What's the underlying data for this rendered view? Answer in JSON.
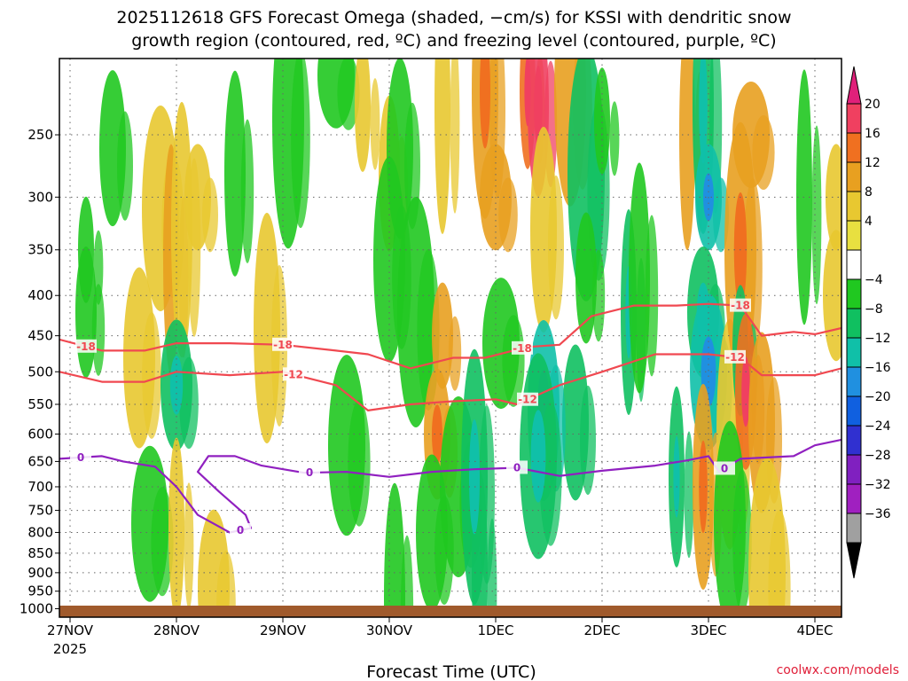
{
  "chart_data": {
    "type": "heatmap",
    "title_line1": "2025112618 GFS Forecast Omega (shaded, −cm/s) for KSSI with dendritic snow",
    "title_line2": "growth region (contoured, red, ºC) and freezing level (contoured, purple, ºC)",
    "xlabel": "Forecast Time (UTC)",
    "ylabel": "",
    "credit": "coolwx.com/models",
    "x_ticks": [
      {
        "t": 0.0,
        "label": "27NOV"
      },
      {
        "t": 1.0,
        "label": "28NOV"
      },
      {
        "t": 2.0,
        "label": "29NOV"
      },
      {
        "t": 3.0,
        "label": "30NOV"
      },
      {
        "t": 4.0,
        "label": "1DEC"
      },
      {
        "t": 5.0,
        "label": "2DEC"
      },
      {
        "t": 6.0,
        "label": "3DEC"
      },
      {
        "t": 7.0,
        "label": "4DEC"
      }
    ],
    "x_year_label": "2025",
    "xlim": [
      -0.1,
      7.25
    ],
    "y_ticks": [
      250,
      300,
      350,
      400,
      450,
      500,
      550,
      600,
      650,
      700,
      750,
      800,
      850,
      900,
      950,
      1000
    ],
    "ylim": [
      200,
      1025
    ],
    "y_scale": "log",
    "grid": true,
    "colorbar": {
      "labels": [
        "20",
        "16",
        "12",
        "8",
        "4",
        "−4",
        "−8",
        "−12",
        "−16",
        "−20",
        "−24",
        "−28",
        "−32",
        "−36"
      ],
      "colors": [
        "#f04060",
        "#f07020",
        "#e8a020",
        "#e8c830",
        "#e8e040",
        "#ffffff",
        "#20c820",
        "#10c060",
        "#10c0a8",
        "#2090e0",
        "#1060e0",
        "#3030d0",
        "#8020c0",
        "#a020c0",
        "#a0a0a0"
      ],
      "top_arrow_color": "#e0207a",
      "bottom_arrow_color": "#000000"
    },
    "omega_cells": [
      {
        "t": 0.15,
        "p": 350,
        "v": -6
      },
      {
        "t": 0.15,
        "p": 420,
        "v": -8
      },
      {
        "t": 0.4,
        "p": 260,
        "v": -6
      },
      {
        "t": 0.65,
        "p": 480,
        "v": 6
      },
      {
        "t": 0.85,
        "p": 310,
        "v": 6
      },
      {
        "t": 0.95,
        "p": 360,
        "v": 9
      },
      {
        "t": 1.05,
        "p": 330,
        "v": 5
      },
      {
        "t": 1.2,
        "p": 300,
        "v": 5
      },
      {
        "t": 1.0,
        "p": 520,
        "v": -12
      },
      {
        "t": 0.75,
        "p": 780,
        "v": -8
      },
      {
        "t": 1.0,
        "p": 790,
        "v": 5
      },
      {
        "t": 1.55,
        "p": 280,
        "v": -6
      },
      {
        "t": 1.85,
        "p": 440,
        "v": 5
      },
      {
        "t": 2.05,
        "p": 240,
        "v": -6
      },
      {
        "t": 2.5,
        "p": 210,
        "v": -7
      },
      {
        "t": 2.75,
        "p": 230,
        "v": 5
      },
      {
        "t": 3.0,
        "p": 280,
        "v": 5
      },
      {
        "t": 3.1,
        "p": 260,
        "v": -7
      },
      {
        "t": 3.0,
        "p": 360,
        "v": -8
      },
      {
        "t": 3.25,
        "p": 420,
        "v": -7
      },
      {
        "t": 3.5,
        "p": 230,
        "v": 6
      },
      {
        "t": 3.5,
        "p": 450,
        "v": 8
      },
      {
        "t": 3.45,
        "p": 600,
        "v": 10
      },
      {
        "t": 3.4,
        "p": 800,
        "v": -8
      },
      {
        "t": 3.65,
        "p": 700,
        "v": -7
      },
      {
        "t": 3.85,
        "p": 900,
        "v": -9
      },
      {
        "t": 3.05,
        "p": 970,
        "v": -8
      },
      {
        "t": 3.9,
        "p": 220,
        "v": 10
      },
      {
        "t": 4.0,
        "p": 300,
        "v": 8
      },
      {
        "t": 4.05,
        "p": 460,
        "v": -8
      },
      {
        "t": 4.3,
        "p": 220,
        "v": 13
      },
      {
        "t": 4.4,
        "p": 230,
        "v": 20
      },
      {
        "t": 4.45,
        "p": 330,
        "v": 7
      },
      {
        "t": 4.7,
        "p": 220,
        "v": 9
      },
      {
        "t": 4.85,
        "p": 280,
        "v": -9
      },
      {
        "t": 5.0,
        "p": 240,
        "v": -8
      },
      {
        "t": 4.85,
        "p": 380,
        "v": -8
      },
      {
        "t": 4.75,
        "p": 580,
        "v": -9
      },
      {
        "t": 4.45,
        "p": 560,
        "v": -14
      },
      {
        "t": 4.4,
        "p": 640,
        "v": -12
      },
      {
        "t": 5.8,
        "p": 250,
        "v": 8
      },
      {
        "t": 5.95,
        "p": 230,
        "v": -10
      },
      {
        "t": 6.0,
        "p": 300,
        "v": -14
      },
      {
        "t": 5.95,
        "p": 420,
        "v": -12
      },
      {
        "t": 6.0,
        "p": 500,
        "v": -14
      },
      {
        "t": 5.7,
        "p": 680,
        "v": -10
      },
      {
        "t": 5.95,
        "p": 700,
        "v": 10
      },
      {
        "t": 6.2,
        "p": 600,
        "v": 6
      },
      {
        "t": 6.3,
        "p": 350,
        "v": 10
      },
      {
        "t": 6.4,
        "p": 250,
        "v": 8
      },
      {
        "t": 6.3,
        "p": 470,
        "v": -9
      },
      {
        "t": 6.35,
        "p": 530,
        "v": 14
      },
      {
        "t": 6.5,
        "p": 580,
        "v": 9
      },
      {
        "t": 6.2,
        "p": 780,
        "v": -8
      },
      {
        "t": 6.55,
        "p": 900,
        "v": 6
      },
      {
        "t": 6.9,
        "p": 300,
        "v": -8
      },
      {
        "t": 7.2,
        "p": 300,
        "v": 6
      },
      {
        "t": 7.2,
        "p": 400,
        "v": 5
      },
      {
        "t": 1.35,
        "p": 940,
        "v": 5
      },
      {
        "t": 2.6,
        "p": 620,
        "v": -7
      },
      {
        "t": 5.25,
        "p": 420,
        "v": -10
      },
      {
        "t": 5.35,
        "p": 380,
        "v": -8
      },
      {
        "t": 3.8,
        "p": 680,
        "v": -10
      }
    ],
    "contours": [
      {
        "label": "-18",
        "color": "#f04850",
        "label_t": [
          0.15,
          2.0,
          4.25,
          6.3
        ],
        "points": [
          [
            -0.1,
            455
          ],
          [
            0.3,
            470
          ],
          [
            0.7,
            470
          ],
          [
            1.0,
            460
          ],
          [
            1.5,
            460
          ],
          [
            2.0,
            462
          ],
          [
            2.5,
            470
          ],
          [
            2.8,
            475
          ],
          [
            3.2,
            495
          ],
          [
            3.6,
            480
          ],
          [
            3.9,
            480
          ],
          [
            4.3,
            465
          ],
          [
            4.6,
            462
          ],
          [
            4.9,
            425
          ],
          [
            5.3,
            412
          ],
          [
            5.7,
            412
          ],
          [
            6.0,
            410
          ],
          [
            6.3,
            412
          ],
          [
            6.5,
            450
          ],
          [
            6.8,
            445
          ],
          [
            7.0,
            448
          ],
          [
            7.25,
            440
          ]
        ]
      },
      {
        "label": "-12",
        "color": "#f04850",
        "label_t": [
          2.1,
          4.3,
          6.25
        ],
        "points": [
          [
            -0.1,
            500
          ],
          [
            0.3,
            515
          ],
          [
            0.7,
            515
          ],
          [
            1.0,
            500
          ],
          [
            1.5,
            505
          ],
          [
            2.0,
            500
          ],
          [
            2.5,
            520
          ],
          [
            2.8,
            560
          ],
          [
            3.2,
            550
          ],
          [
            3.6,
            545
          ],
          [
            4.0,
            542
          ],
          [
            4.2,
            550
          ],
          [
            4.6,
            520
          ],
          [
            5.0,
            500
          ],
          [
            5.5,
            475
          ],
          [
            6.0,
            475
          ],
          [
            6.3,
            480
          ],
          [
            6.5,
            505
          ],
          [
            7.0,
            505
          ],
          [
            7.25,
            495
          ]
        ]
      },
      {
        "label": "0",
        "color": "#9020c0",
        "label_t": [
          0.1,
          1.6,
          2.25,
          4.2,
          6.15
        ],
        "points": [
          [
            -0.1,
            645
          ],
          [
            0.3,
            640
          ],
          [
            0.5,
            650
          ],
          [
            0.8,
            660
          ],
          [
            1.0,
            700
          ],
          [
            1.2,
            760
          ],
          [
            1.5,
            800
          ],
          [
            1.7,
            790
          ],
          [
            1.65,
            760
          ],
          [
            1.4,
            710
          ],
          [
            1.2,
            670
          ],
          [
            1.3,
            640
          ],
          [
            1.55,
            640
          ],
          [
            1.8,
            658
          ],
          [
            2.2,
            672
          ],
          [
            2.6,
            670
          ],
          [
            3.0,
            680
          ],
          [
            3.4,
            670
          ],
          [
            3.8,
            665
          ],
          [
            4.2,
            662
          ],
          [
            4.6,
            678
          ],
          [
            5.0,
            668
          ],
          [
            5.5,
            658
          ],
          [
            5.8,
            648
          ],
          [
            6.0,
            640
          ],
          [
            6.1,
            670
          ],
          [
            6.3,
            645
          ],
          [
            6.8,
            640
          ],
          [
            7.0,
            620
          ],
          [
            7.25,
            610
          ]
        ]
      }
    ]
  }
}
